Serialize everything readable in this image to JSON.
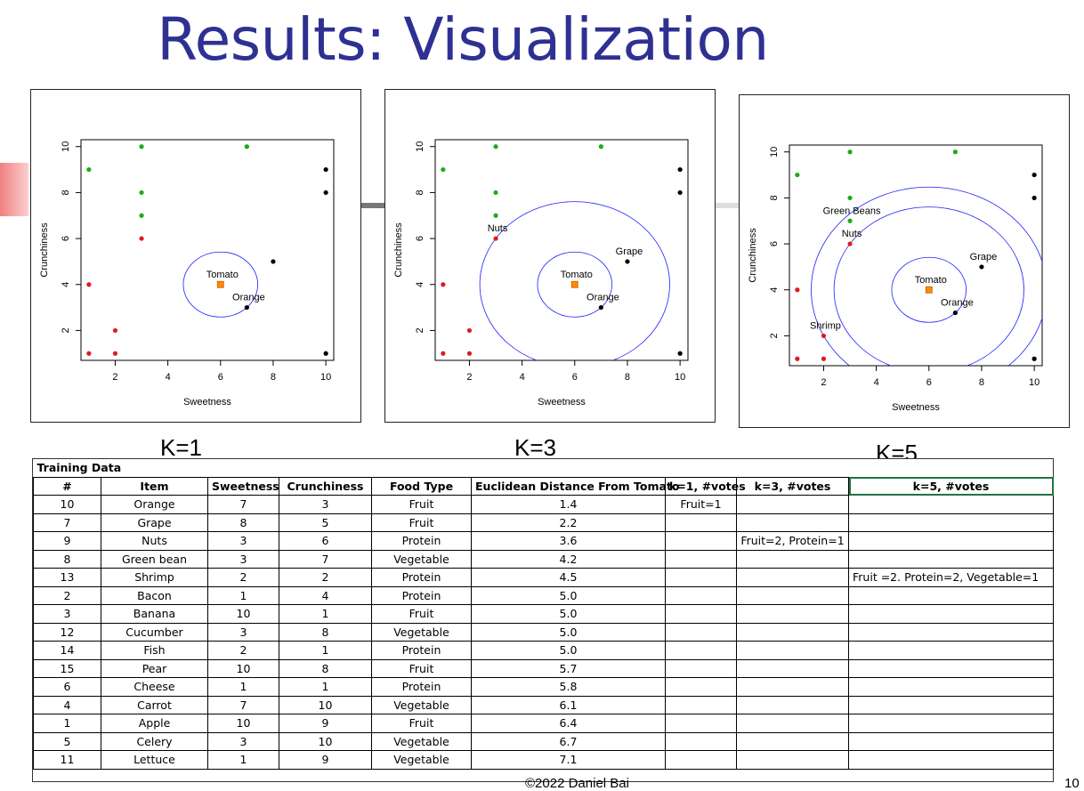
{
  "slide": {
    "title": "Results: Visualization",
    "footer": "©2022 Daniel Bai",
    "page_number": "10"
  },
  "colors": {
    "title": "#2e3192",
    "fruit": "#000000",
    "protein": "#e31a1c",
    "vegetable": "#1aad19",
    "query": "#ff8c00",
    "circle": "#1f1fff"
  },
  "chart_data": [
    {
      "type": "scatter",
      "caption": "K=1",
      "xlabel": "Sweetness",
      "ylabel": "Crunchiness",
      "xlim": [
        0.7,
        10.3
      ],
      "ylim": [
        0.7,
        10.3
      ],
      "xticks": [
        2,
        4,
        6,
        8,
        10
      ],
      "yticks": [
        2,
        4,
        6,
        8,
        10
      ],
      "circles": [
        {
          "cx": 6,
          "cy": 4,
          "r": 1.414
        }
      ],
      "labels": [
        {
          "x": 6,
          "y": 4,
          "text": "Tomato"
        },
        {
          "x": 7,
          "y": 3,
          "text": "Orange"
        }
      ]
    },
    {
      "type": "scatter",
      "caption": "K=3",
      "xlabel": "Sweetness",
      "ylabel": "Crunchiness",
      "xlim": [
        0.7,
        10.3
      ],
      "ylim": [
        0.7,
        10.3
      ],
      "xticks": [
        2,
        4,
        6,
        8,
        10
      ],
      "yticks": [
        2,
        4,
        6,
        8,
        10
      ],
      "circles": [
        {
          "cx": 6,
          "cy": 4,
          "r": 1.414
        },
        {
          "cx": 6,
          "cy": 4,
          "r": 3.606
        }
      ],
      "labels": [
        {
          "x": 6,
          "y": 4,
          "text": "Tomato"
        },
        {
          "x": 7,
          "y": 3,
          "text": "Orange"
        },
        {
          "x": 8,
          "y": 5,
          "text": "Grape"
        },
        {
          "x": 3,
          "y": 6,
          "text": "Nuts"
        }
      ]
    },
    {
      "type": "scatter",
      "caption": "K=5",
      "xlabel": "Sweetness",
      "ylabel": "Crunchiness",
      "xlim": [
        0.7,
        10.3
      ],
      "ylim": [
        0.7,
        10.3
      ],
      "xticks": [
        2,
        4,
        6,
        8,
        10
      ],
      "yticks": [
        2,
        4,
        6,
        8,
        10
      ],
      "circles": [
        {
          "cx": 6,
          "cy": 4,
          "r": 1.414
        },
        {
          "cx": 6,
          "cy": 4,
          "r": 3.606
        },
        {
          "cx": 6,
          "cy": 4,
          "r": 4.472
        }
      ],
      "labels": [
        {
          "x": 6,
          "y": 4,
          "text": "Tomato"
        },
        {
          "x": 7,
          "y": 3,
          "text": "Orange"
        },
        {
          "x": 8,
          "y": 5,
          "text": "Grape"
        },
        {
          "x": 3,
          "y": 6,
          "text": "Nuts"
        },
        {
          "x": 3,
          "y": 7,
          "text": "Green Beans"
        },
        {
          "x": 2,
          "y": 2,
          "text": "Shrimp"
        }
      ]
    }
  ],
  "points": [
    {
      "x": 7,
      "y": 3,
      "type": "Fruit"
    },
    {
      "x": 8,
      "y": 5,
      "type": "Fruit"
    },
    {
      "x": 3,
      "y": 6,
      "type": "Protein"
    },
    {
      "x": 3,
      "y": 7,
      "type": "Vegetable"
    },
    {
      "x": 2,
      "y": 2,
      "type": "Protein"
    },
    {
      "x": 1,
      "y": 4,
      "type": "Protein"
    },
    {
      "x": 10,
      "y": 1,
      "type": "Fruit"
    },
    {
      "x": 3,
      "y": 8,
      "type": "Vegetable"
    },
    {
      "x": 2,
      "y": 1,
      "type": "Protein"
    },
    {
      "x": 10,
      "y": 8,
      "type": "Fruit"
    },
    {
      "x": 1,
      "y": 1,
      "type": "Protein"
    },
    {
      "x": 7,
      "y": 10,
      "type": "Vegetable"
    },
    {
      "x": 10,
      "y": 9,
      "type": "Fruit"
    },
    {
      "x": 3,
      "y": 10,
      "type": "Vegetable"
    },
    {
      "x": 1,
      "y": 9,
      "type": "Vegetable"
    }
  ],
  "query_point": {
    "x": 6,
    "y": 4
  },
  "table": {
    "caption": "Training Data",
    "columns": [
      "#",
      "Item",
      "Sweetness",
      "Crunchiness",
      "Food Type",
      "Euclidean Distance From Tomato",
      "k=1, #votes",
      "k=3, #votes",
      "k=5, #votes"
    ],
    "rows": [
      [
        "10",
        "Orange",
        "7",
        "3",
        "Fruit",
        "1.4",
        "Fruit=1",
        "",
        ""
      ],
      [
        "7",
        "Grape",
        "8",
        "5",
        "Fruit",
        "2.2",
        "",
        "",
        ""
      ],
      [
        "9",
        "Nuts",
        "3",
        "6",
        "Protein",
        "3.6",
        "",
        "Fruit=2, Protein=1",
        ""
      ],
      [
        "8",
        "Green bean",
        "3",
        "7",
        "Vegetable",
        "4.2",
        "",
        "",
        ""
      ],
      [
        "13",
        "Shrimp",
        "2",
        "2",
        "Protein",
        "4.5",
        "",
        "",
        "Fruit =2. Protein=2, Vegetable=1"
      ],
      [
        "2",
        "Bacon",
        "1",
        "4",
        "Protein",
        "5.0",
        "",
        "",
        ""
      ],
      [
        "3",
        "Banana",
        "10",
        "1",
        "Fruit",
        "5.0",
        "",
        "",
        ""
      ],
      [
        "12",
        "Cucumber",
        "3",
        "8",
        "Vegetable",
        "5.0",
        "",
        "",
        ""
      ],
      [
        "14",
        "Fish",
        "2",
        "1",
        "Protein",
        "5.0",
        "",
        "",
        ""
      ],
      [
        "15",
        "Pear",
        "10",
        "8",
        "Fruit",
        "5.7",
        "",
        "",
        ""
      ],
      [
        "6",
        "Cheese",
        "1",
        "1",
        "Protein",
        "5.8",
        "",
        "",
        ""
      ],
      [
        "4",
        "Carrot",
        "7",
        "10",
        "Vegetable",
        "6.1",
        "",
        "",
        ""
      ],
      [
        "1",
        "Apple",
        "10",
        "9",
        "Fruit",
        "6.4",
        "",
        "",
        ""
      ],
      [
        "5",
        "Celery",
        "3",
        "10",
        "Vegetable",
        "6.7",
        "",
        "",
        ""
      ],
      [
        "11",
        "Lettuce",
        "1",
        "9",
        "Vegetable",
        "7.1",
        "",
        "",
        ""
      ]
    ]
  }
}
